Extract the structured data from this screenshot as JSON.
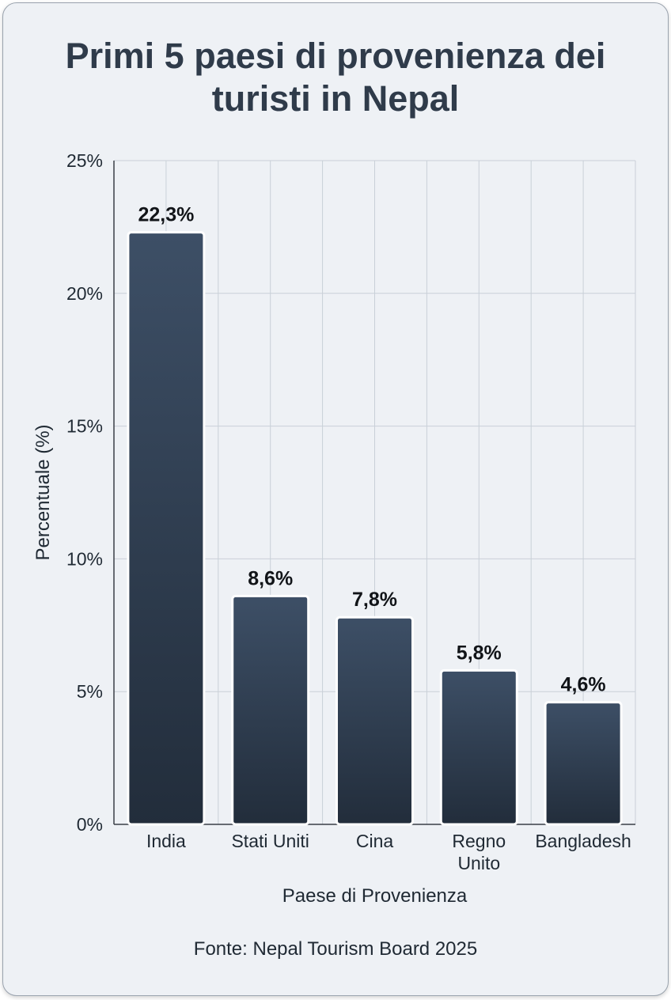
{
  "chart_data": {
    "type": "bar",
    "title_lines": [
      "Primi 5 paesi di provenienza dei",
      "turisti in Nepal"
    ],
    "xlabel": "Paese di Provenienza",
    "ylabel": "Percentuale (%)",
    "categories": [
      [
        "India"
      ],
      [
        "Stati Uniti"
      ],
      [
        "Cina"
      ],
      [
        "Regno",
        "Unito"
      ],
      [
        "Bangladesh"
      ]
    ],
    "values": [
      22.3,
      8.6,
      7.8,
      5.8,
      4.6
    ],
    "value_labels": [
      "22,3%",
      "8,6%",
      "7,8%",
      "5,8%",
      "4,6%"
    ],
    "ylim": [
      0,
      25
    ],
    "yticks": [
      0,
      5,
      10,
      15,
      20,
      25
    ],
    "ytick_labels": [
      "0%",
      "5%",
      "10%",
      "15%",
      "20%",
      "25%"
    ],
    "grid": true,
    "bar_color_top": "#3d4f66",
    "bar_color_bottom": "#222d3b",
    "source": "Fonte: Nepal Tourism Board 2025"
  }
}
